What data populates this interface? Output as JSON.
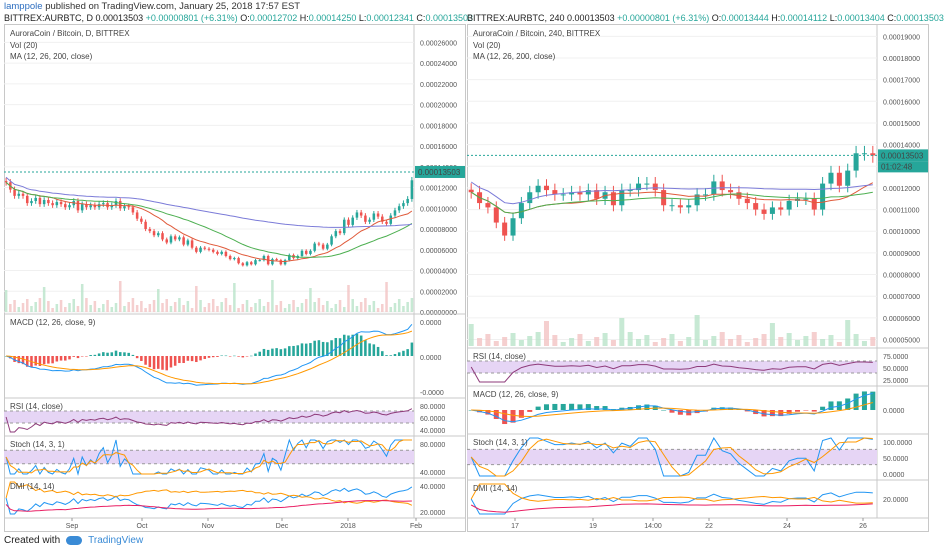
{
  "header": {
    "user": "lamppole",
    "published": "published on TradingView.com, January 25, 2018 17:57 EST"
  },
  "footer": {
    "created_with": "Created with",
    "brand": "TradingView"
  },
  "colors": {
    "up": "#26a69a",
    "down": "#ef5350",
    "ma12": "#e05a3a",
    "ma26": "#4caf50",
    "ma200": "#7b7bd8",
    "rsi": "#8e3a7a",
    "rsi_band": "#e6d5f5",
    "macd": "#2196f3",
    "signal": "#ff9800",
    "dmi_plus": "#2196f3",
    "dmi_minus": "#ff9800",
    "adx": "#e91e63"
  },
  "chart_data": [
    {
      "type": "candlestick",
      "symbol_line": "BITTREX:AURBTC, D",
      "quote": {
        "last": "0.00013503",
        "change": "+0.00000801 (+6.31%)",
        "O": "0.00012702",
        "H": "0.00014250",
        "L": "0.00012341",
        "C": "0.00013503"
      },
      "title": "AuroraCoin / Bitcoin, D, BITTREX",
      "indicators": [
        "Vol (20)",
        "MA (12, 26, 200, close)"
      ],
      "price_label": "0.00013503",
      "y_ticks": [
        "0.00026000",
        "0.00024000",
        "0.00022000",
        "0.00020000",
        "0.00018000",
        "0.00016000",
        "0.00014000",
        "0.00012000",
        "0.00010000",
        "0.00008000",
        "0.00006000",
        "0.00004000",
        "0.00002000",
        "0.00000000"
      ],
      "ylim": [
        0,
        0.00027
      ],
      "x_ticks": [
        "Sep",
        "Oct",
        "Nov",
        "Dec",
        "2018",
        "Feb"
      ],
      "close": [
        0.000125,
        0.000118,
        0.000112,
        0.000114,
        0.000112,
        0.000105,
        0.000107,
        0.00011,
        0.000104,
        0.000108,
        0.000105,
        0.000103,
        0.000106,
        0.000104,
        0.000101,
        0.000103,
        0.000107,
        9.8e-05,
        0.000104,
        0.000101,
        0.000103,
        0.000101,
        0.000104,
        0.000105,
        0.000101,
        0.000103,
        0.000107,
        0.0001,
        0.000102,
        0.000101,
        9.6e-05,
        9e-05,
        8.7e-05,
        8e-05,
        7.8e-05,
        7.4e-05,
        7.6e-05,
        7e-05,
        6.7e-05,
        7.3e-05,
        7e-05,
        7.2e-05,
        6.5e-05,
        6.9e-05,
        6.2e-05,
        5.8e-05,
        6.2e-05,
        6.1e-05,
        6e-05,
        5.8e-05,
        5.6e-05,
        5.8e-05,
        5.4e-05,
        5.1e-05,
        5.2e-05,
        4.7e-05,
        4.5e-05,
        4.8e-05,
        4.6e-05,
        5e-05,
        5e-05,
        5.4e-05,
        4.6e-05,
        5.1e-05,
        5e-05,
        4.6e-05,
        5e-05,
        5.5e-05,
        5.2e-05,
        5.4e-05,
        5.9e-05,
        5.6e-05,
        5.9e-05,
        6.6e-05,
        6.5e-05,
        6.1e-05,
        6.5e-05,
        7.3e-05,
        7.8e-05,
        7.6e-05,
        8.9e-05,
        8.4e-05,
        9.1e-05,
        9.6e-05,
        9.3e-05,
        8.7e-05,
        8.9e-05,
        9.5e-05,
        9.2e-05,
        8.7e-05,
        8.5e-05,
        9.3e-05,
        9.8e-05,
        0.000102,
        0.000105,
        0.000109,
        0.000127
      ],
      "volume_note": "volume histogram",
      "sub_panels": [
        {
          "label": "MACD (12, 26, close, 9)",
          "ticks": [
            "0.0000",
            "0.0000",
            "-0.0000"
          ]
        },
        {
          "label": "RSI (14, close)",
          "ticks": [
            "80.0000",
            "60.0000",
            "40.0000"
          ]
        },
        {
          "label": "Stoch (14, 3, 1)",
          "ticks": [
            "80.0000",
            "40.0000"
          ]
        },
        {
          "label": "DMI (14, 14)",
          "ticks": [
            "40.0000",
            "20.0000"
          ]
        }
      ]
    },
    {
      "type": "candlestick",
      "symbol_line": "BITTREX:AURBTC, 240",
      "quote": {
        "last": "0.00013503",
        "change": "+0.00000801 (+6.31%)",
        "O": "0.00013444",
        "H": "0.00014112",
        "L": "0.00013404",
        "C": "0.00013503"
      },
      "title": "AuroraCoin / Bitcoin, 240, BITTREX",
      "indicators": [
        "Vol (20)",
        "MA (12, 26, 200, close)"
      ],
      "price_label": "0.00013503",
      "time_label": "01:02:48",
      "y_ticks": [
        "0.00019000",
        "0.00018000",
        "0.00017000",
        "0.00016000",
        "0.00015000",
        "0.00014000",
        "0.00013000",
        "0.00012000",
        "0.00011000",
        "0.00010000",
        "0.00009000",
        "0.00008000",
        "0.00007000",
        "0.00006000",
        "0.00005000"
      ],
      "ylim": [
        4.7e-05,
        0.000192
      ],
      "x_ticks": [
        "17",
        "19",
        "14:00",
        "22",
        "24",
        "26"
      ],
      "close": [
        0.000118,
        0.000113,
        0.000111,
        0.000104,
        9.8e-05,
        0.000106,
        0.000113,
        0.000118,
        0.000121,
        0.000119,
        0.000117,
        0.000117,
        0.000118,
        0.000117,
        0.000119,
        0.000115,
        0.000118,
        0.000112,
        0.000119,
        0.000119,
        0.000122,
        0.000122,
        0.000119,
        0.000112,
        0.000112,
        0.000111,
        0.000112,
        0.000117,
        0.000117,
        0.000123,
        0.000119,
        0.000118,
        0.000115,
        0.000113,
        0.00011,
        0.000108,
        0.000111,
        0.00011,
        0.000114,
        0.000115,
        0.000115,
        0.00011,
        0.000122,
        0.000127,
        0.000121,
        0.000128,
        0.000136,
        0.000136,
        0.000135
      ],
      "sub_panels": [
        {
          "label": "RSI (14, close)",
          "ticks": [
            "75.0000",
            "50.0000",
            "25.0000"
          ]
        },
        {
          "label": "MACD (12, 26, close, 9)",
          "ticks": [
            "0.0000"
          ]
        },
        {
          "label": "Stoch (14, 3, 1)",
          "ticks": [
            "100.0000",
            "50.0000",
            "0.0000"
          ]
        },
        {
          "label": "DMI (14, 14)",
          "ticks": [
            "20.0000"
          ]
        }
      ]
    }
  ]
}
